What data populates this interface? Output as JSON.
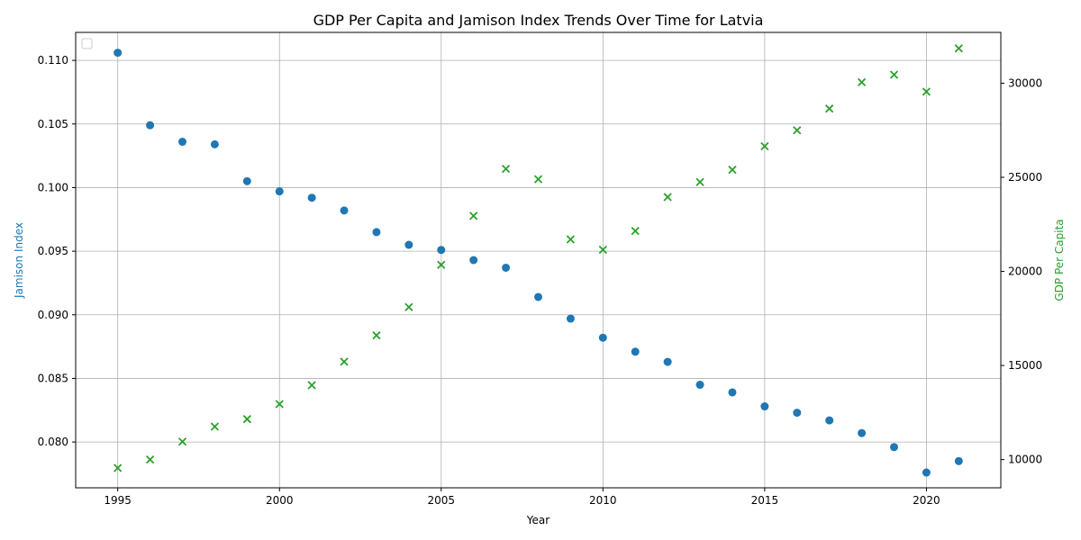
{
  "chart_data": {
    "type": "scatter",
    "title": "GDP Per Capita and Jamison Index Trends Over Time for Latvia",
    "xlabel": "Year",
    "ylabel_left": "Jamison Index",
    "ylabel_right": "GDP Per Capita",
    "xlim": [
      1993.7,
      2022.3
    ],
    "ylim_left": [
      0.0764,
      0.1122
    ],
    "ylim_right": [
      8500,
      32700
    ],
    "x_ticks": [
      1995,
      2000,
      2005,
      2010,
      2015,
      2020
    ],
    "y_left_ticks": [
      0.08,
      0.085,
      0.09,
      0.095,
      0.1,
      0.105,
      0.11
    ],
    "y_left_tick_labels": [
      "0.080",
      "0.085",
      "0.090",
      "0.095",
      "0.100",
      "0.105",
      "0.110"
    ],
    "y_right_ticks": [
      10000,
      15000,
      20000,
      25000,
      30000
    ],
    "grid": true,
    "legend": "top-left (empty)",
    "colors": {
      "left": "#1f77b4",
      "right": "#2ca02c"
    },
    "x": [
      1995,
      1996,
      1997,
      1998,
      1999,
      2000,
      2001,
      2002,
      2003,
      2004,
      2005,
      2006,
      2007,
      2008,
      2009,
      2010,
      2011,
      2012,
      2013,
      2014,
      2015,
      2016,
      2017,
      2018,
      2019,
      2020,
      2021
    ],
    "series": [
      {
        "axis": "left",
        "marker": "circle",
        "values": [
          0.1106,
          0.1049,
          0.1036,
          0.1034,
          0.1005,
          0.0997,
          0.0992,
          0.0982,
          0.0965,
          0.0955,
          0.0951,
          0.0943,
          0.0937,
          0.0914,
          0.0897,
          0.0882,
          0.0871,
          0.0863,
          0.0845,
          0.0839,
          0.0828,
          0.0823,
          0.0817,
          0.0807,
          0.0796,
          0.0776,
          0.0785
        ]
      },
      {
        "axis": "right",
        "marker": "x",
        "values": [
          9550,
          10000,
          10950,
          11750,
          12150,
          12950,
          13950,
          15200,
          16600,
          18100,
          20350,
          22950,
          25450,
          24900,
          21700,
          21150,
          22150,
          23950,
          24750,
          25400,
          26650,
          27500,
          28650,
          30050,
          30450,
          29550,
          31850
        ]
      }
    ]
  }
}
